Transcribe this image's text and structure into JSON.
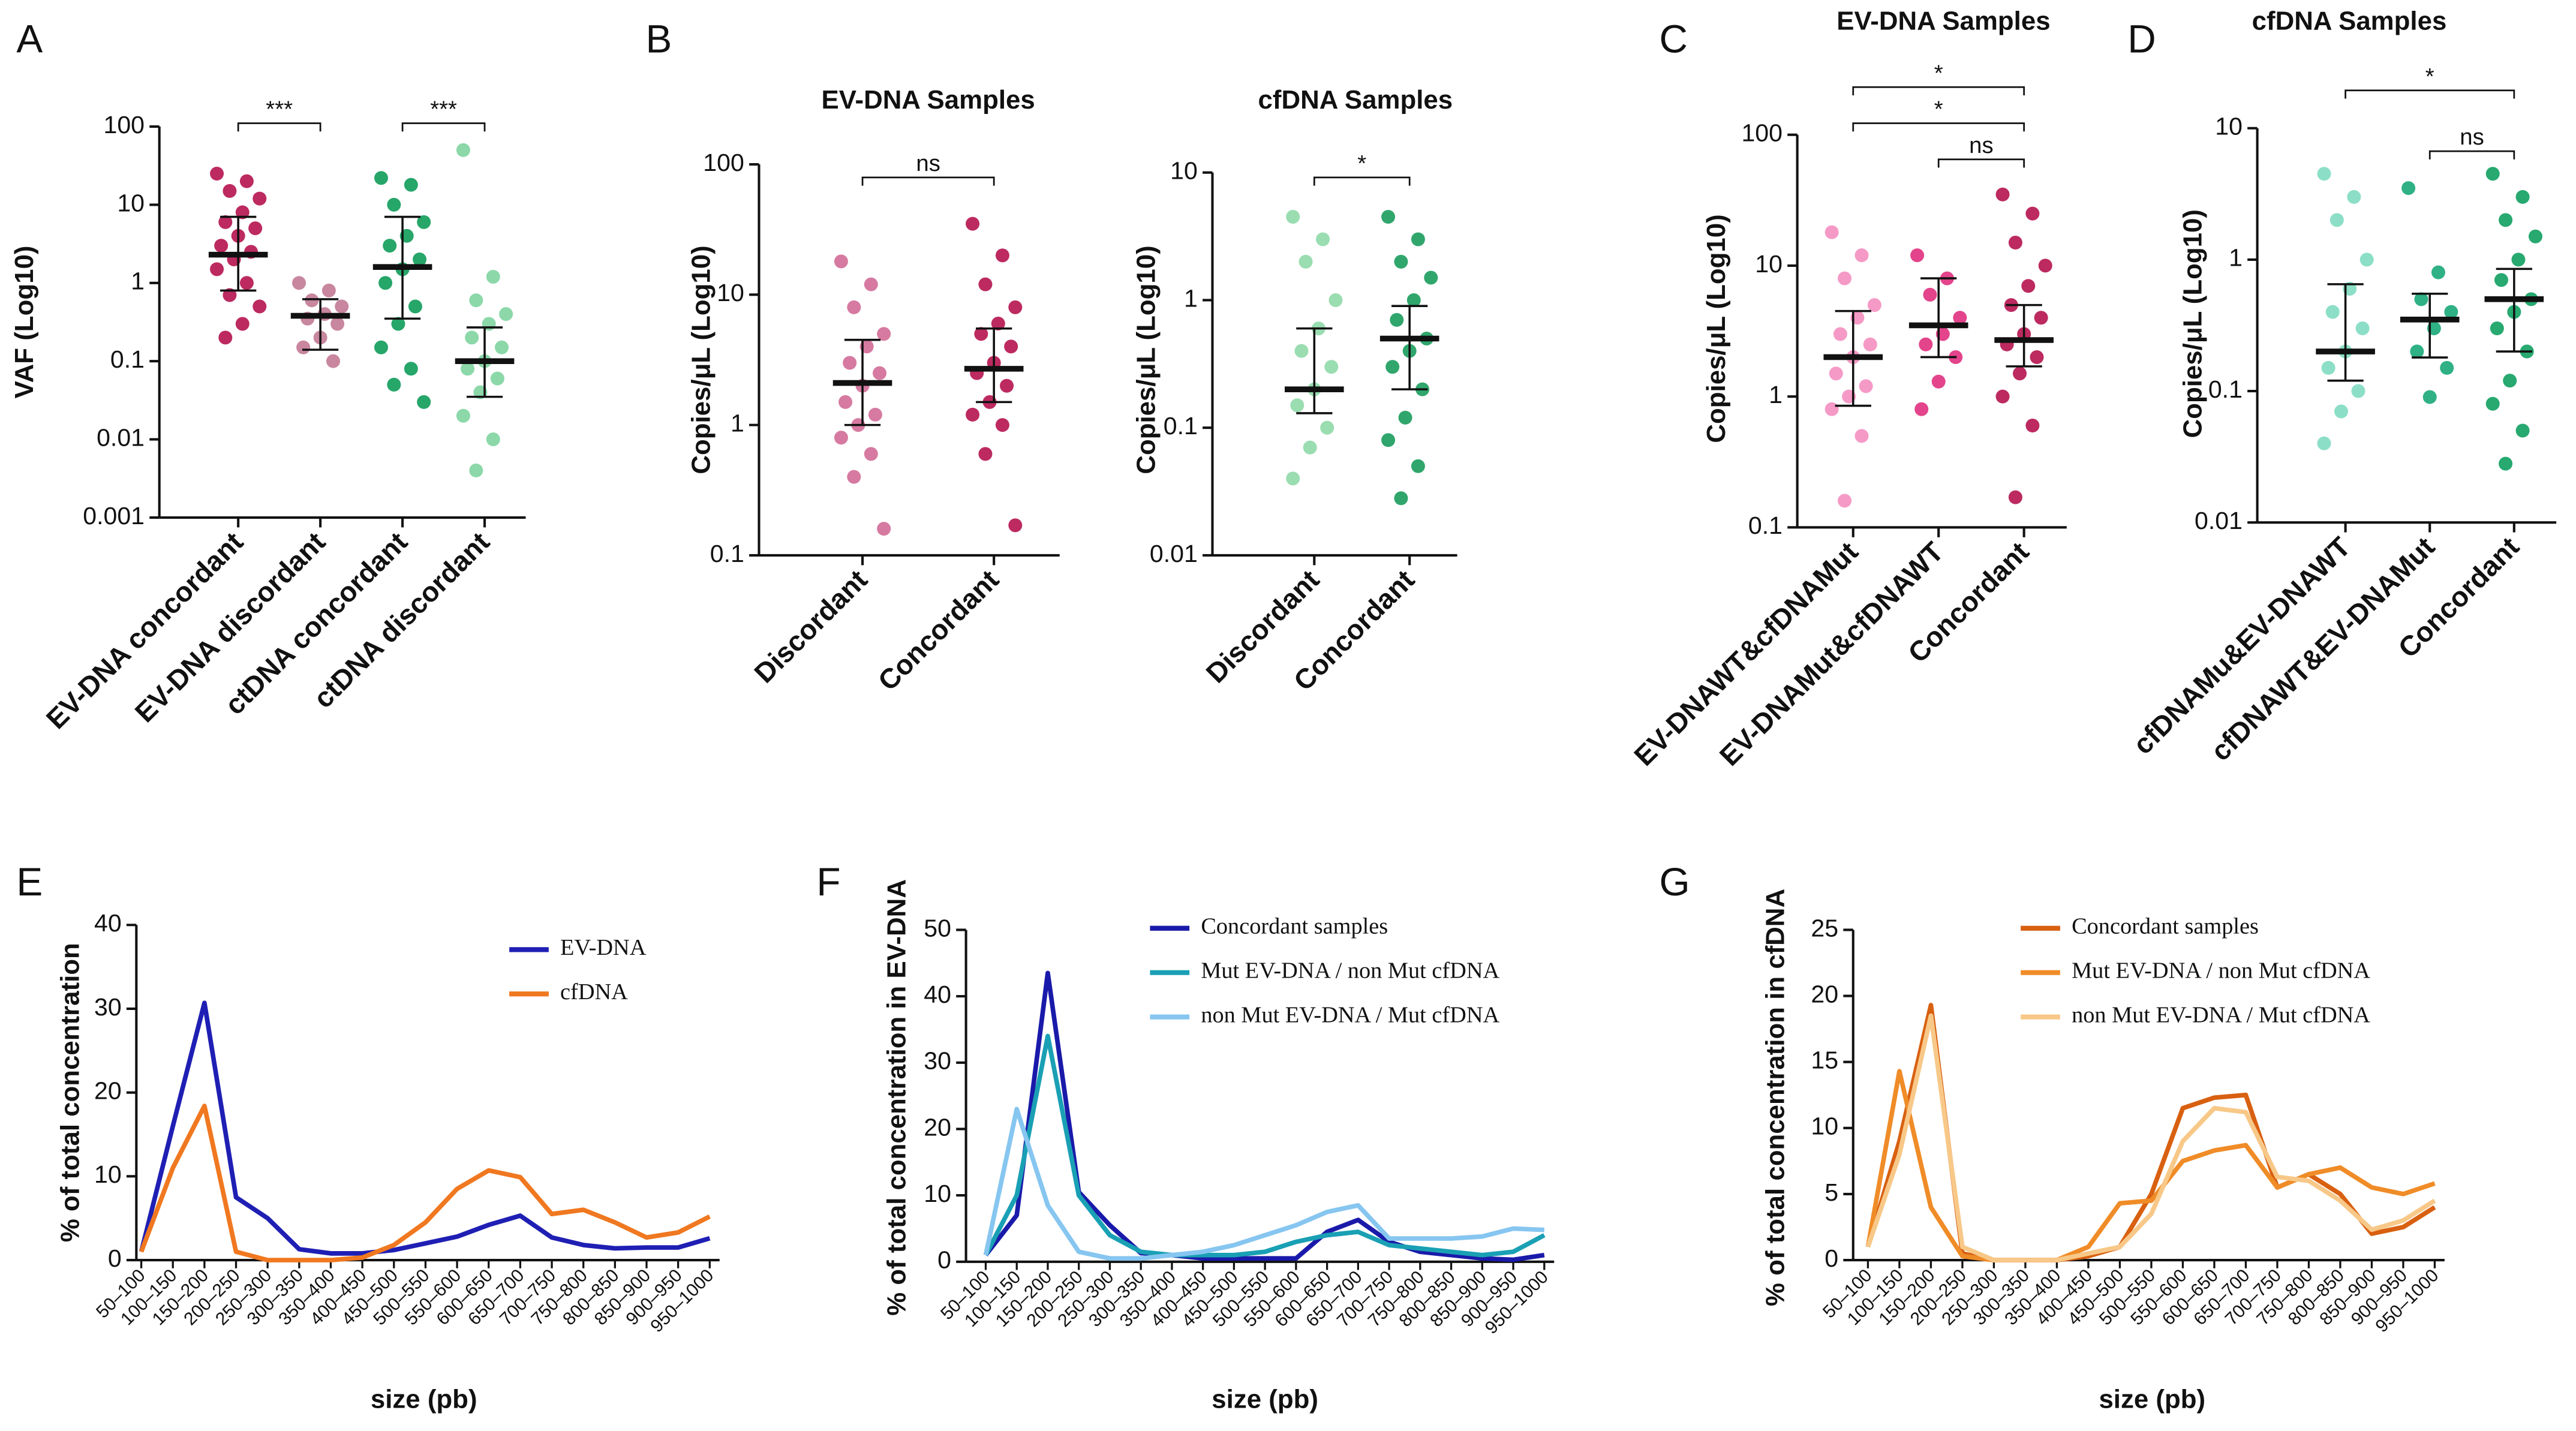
{
  "chart_data": [
    {
      "type": "strip",
      "panel": "A",
      "ylabel": "VAF (Log10)",
      "log": true,
      "ylim": [
        0.001,
        100
      ],
      "yticks": [
        100,
        10,
        1,
        0.1,
        0.01,
        0.001
      ],
      "categories": [
        "EV-DNA concordant",
        "EV-DNA discordant",
        "ctDNA concordant",
        "ctDNA discordant"
      ],
      "groups": [
        {
          "color": "#b5134e",
          "median": 2.3,
          "low": 0.8,
          "high": 7,
          "values": [
            25,
            20,
            15,
            12,
            8,
            6,
            5,
            4,
            3,
            2.5,
            2,
            1.5,
            1,
            0.7,
            0.5,
            0.3,
            0.2
          ]
        },
        {
          "color": "#c27a95",
          "median": 0.38,
          "low": 0.14,
          "high": 0.62,
          "values": [
            1,
            0.8,
            0.6,
            0.5,
            0.4,
            0.35,
            0.3,
            0.2,
            0.15,
            0.1
          ]
        },
        {
          "color": "#0f9c5a",
          "median": 1.6,
          "low": 0.35,
          "high": 7,
          "values": [
            22,
            18,
            10,
            6,
            4,
            3,
            2,
            1.5,
            1,
            0.5,
            0.3,
            0.15,
            0.08,
            0.05,
            0.03
          ]
        },
        {
          "color": "#7fd4a0",
          "median": 0.1,
          "low": 0.035,
          "high": 0.27,
          "values": [
            50,
            1.2,
            0.6,
            0.4,
            0.3,
            0.2,
            0.15,
            0.1,
            0.08,
            0.06,
            0.04,
            0.02,
            0.01,
            0.004
          ]
        }
      ],
      "brackets": [
        {
          "between": [
            "EV-DNA concordant",
            "EV-DNA discordant"
          ],
          "label": "***"
        },
        {
          "between": [
            "ctDNA concordant",
            "ctDNA discordant"
          ],
          "label": "***"
        }
      ]
    },
    {
      "type": "strip",
      "panel": "B",
      "title": "EV-DNA Samples",
      "ylabel": "Copies/μL (Log10)",
      "log": true,
      "ylim": [
        0.1,
        100
      ],
      "yticks": [
        100,
        10,
        1,
        0.1
      ],
      "categories": [
        "Discordant",
        "Concordant"
      ],
      "groups": [
        {
          "color": "#d16b97",
          "median": 2.1,
          "low": 1.0,
          "high": 4.5,
          "values": [
            18,
            12,
            8,
            5,
            4,
            3,
            2.5,
            2,
            1.5,
            1.2,
            1,
            0.8,
            0.6,
            0.4,
            0.16
          ]
        },
        {
          "color": "#b5134e",
          "median": 2.7,
          "low": 1.5,
          "high": 5.5,
          "values": [
            35,
            20,
            12,
            8,
            6,
            5,
            4,
            3,
            2.5,
            2,
            1.5,
            1.2,
            1,
            0.6,
            0.17
          ]
        }
      ],
      "brackets": [
        {
          "between": [
            "Discordant",
            "Concordant"
          ],
          "label": "ns"
        }
      ]
    },
    {
      "type": "strip",
      "title": "cfDNA  Samples",
      "ylabel": "Copies/μL (Log10)",
      "log": true,
      "ylim": [
        0.01,
        10
      ],
      "yticks": [
        10,
        1,
        0.1,
        0.01
      ],
      "categories": [
        "Discordant",
        "Concordant"
      ],
      "groups": [
        {
          "color": "#8fd9a8",
          "median": 0.2,
          "low": 0.13,
          "high": 0.6,
          "values": [
            4.5,
            3,
            2,
            1,
            0.6,
            0.4,
            0.3,
            0.2,
            0.15,
            0.1,
            0.07,
            0.04
          ]
        },
        {
          "color": "#1a9c5c",
          "median": 0.5,
          "low": 0.2,
          "high": 0.9,
          "values": [
            4.5,
            3,
            2,
            1.5,
            1,
            0.7,
            0.5,
            0.4,
            0.3,
            0.2,
            0.12,
            0.08,
            0.05,
            0.028
          ]
        }
      ],
      "brackets": [
        {
          "between": [
            "Discordant",
            "Concordant"
          ],
          "label": "*"
        }
      ]
    },
    {
      "type": "strip",
      "panel": "C",
      "title": "EV-DNA Samples",
      "ylabel": "Copies/μL (Log10)",
      "log": true,
      "ylim": [
        0.1,
        100
      ],
      "yticks": [
        100,
        10,
        1,
        0.1
      ],
      "categories": [
        "EV-DNAWT&cfDNAMut",
        "EV-DNAMut&cfDNAWT",
        "Concordant"
      ],
      "groups": [
        {
          "color": "#f48fc0",
          "median": 2,
          "low": 0.85,
          "high": 4.5,
          "values": [
            18,
            12,
            8,
            5,
            4,
            3,
            2.5,
            2,
            1.5,
            1.2,
            1,
            0.8,
            0.5,
            0.16
          ]
        },
        {
          "color": "#e0307e",
          "median": 3.5,
          "low": 2,
          "high": 8,
          "values": [
            12,
            8,
            6,
            4,
            3,
            2.5,
            2,
            1.3,
            0.8
          ]
        },
        {
          "color": "#b5134e",
          "median": 2.7,
          "low": 1.7,
          "high": 5,
          "values": [
            35,
            25,
            15,
            10,
            7,
            5,
            4,
            3,
            2.5,
            2,
            1.5,
            1,
            0.6,
            0.17
          ]
        }
      ],
      "brackets": [
        {
          "between": [
            "EV-DNAWT&cfDNAMut",
            "Concordant"
          ],
          "label": "*"
        },
        {
          "between": [
            "EV-DNAWT&cfDNAMut",
            "Concordant"
          ],
          "label": "*"
        },
        {
          "between": [
            "EV-DNAMut&cfDNAWT",
            "Concordant"
          ],
          "label": "ns"
        }
      ]
    },
    {
      "type": "strip",
      "panel": "D",
      "title": "cfDNA Samples",
      "ylabel": "Copies/μL (Log10)",
      "log": true,
      "ylim": [
        0.01,
        10
      ],
      "yticks": [
        10,
        1,
        0.1,
        0.01
      ],
      "categories": [
        "cfDNAMu&EV-DNAWT",
        "cfDNAWT&EV-DNAMut",
        "Concordant"
      ],
      "groups": [
        {
          "color": "#7fdcc0",
          "median": 0.2,
          "low": 0.12,
          "high": 0.65,
          "values": [
            4.5,
            3,
            2,
            1,
            0.6,
            0.4,
            0.3,
            0.2,
            0.15,
            0.1,
            0.07,
            0.04
          ]
        },
        {
          "color": "#18a878",
          "median": 0.35,
          "low": 0.18,
          "high": 0.55,
          "values": [
            3.5,
            0.8,
            0.5,
            0.4,
            0.3,
            0.2,
            0.15,
            0.09
          ]
        },
        {
          "color": "#10a060",
          "median": 0.5,
          "low": 0.2,
          "high": 0.85,
          "values": [
            4.5,
            3,
            2,
            1.5,
            1,
            0.7,
            0.5,
            0.4,
            0.3,
            0.2,
            0.12,
            0.08,
            0.05,
            0.028
          ]
        }
      ],
      "brackets": [
        {
          "between": [
            "cfDNAMu&EV-DNAWT",
            "Concordant"
          ],
          "label": "*"
        },
        {
          "between": [
            "cfDNAWT&EV-DNAMut",
            "Concordant"
          ],
          "label": "ns"
        }
      ]
    },
    {
      "type": "line",
      "panel": "E",
      "ylabel": "% of total concentration",
      "xlabel": "size (pb)",
      "ylim": [
        0,
        40
      ],
      "yticks": [
        0,
        10,
        20,
        30,
        40
      ],
      "categories": [
        "50–100",
        "100–150",
        "150–200",
        "200–250",
        "250–300",
        "300–350",
        "350–400",
        "400–450",
        "450–500",
        "500–550",
        "550–600",
        "600–650",
        "650–700",
        "700–750",
        "750–800",
        "800–850",
        "850–900",
        "900–950",
        "950–1000"
      ],
      "series": [
        {
          "name": "EV-DNA",
          "color": "#1f1fb4",
          "values": [
            1,
            16,
            30.7,
            7.5,
            5,
            1.3,
            0.8,
            0.8,
            1.2,
            2,
            2.8,
            4.2,
            5.3,
            2.7,
            1.8,
            1.4,
            1.5,
            1.5,
            2.6
          ]
        },
        {
          "name": "cfDNA",
          "color": "#f07820",
          "values": [
            1,
            11,
            18.4,
            1,
            0,
            0,
            0,
            0.3,
            1.8,
            4.5,
            8.5,
            10.7,
            9.9,
            5.5,
            6,
            4.5,
            2.7,
            3.3,
            5.2
          ]
        }
      ]
    },
    {
      "type": "line",
      "panel": "F",
      "ylabel": "% of total concentration in EV-DNA",
      "xlabel": "size (pb)",
      "ylim": [
        0,
        50
      ],
      "yticks": [
        0,
        10,
        20,
        30,
        40,
        50
      ],
      "categories": [
        "50–100",
        "100–150",
        "150–200",
        "200–250",
        "250–300",
        "300–350",
        "350–400",
        "400–450",
        "450–500",
        "500–550",
        "550–600",
        "600–650",
        "650–700",
        "700–750",
        "750–800",
        "800–850",
        "850–900",
        "900–950",
        "950–1000"
      ],
      "series": [
        {
          "name": "Concordant samples",
          "color": "#1a1aaa",
          "values": [
            1,
            7,
            43.5,
            10.5,
            5.5,
            1.3,
            1,
            0.5,
            0.5,
            0.5,
            0.5,
            4.5,
            6.3,
            3,
            1.5,
            1,
            0.5,
            0.3,
            1
          ]
        },
        {
          "name": "Mut EV-DNA / non Mut cfDNA",
          "color": "#1aa0b4",
          "values": [
            1,
            10,
            34,
            10,
            4,
            1.5,
            1,
            1,
            1,
            1.5,
            3,
            4,
            4.5,
            2.5,
            2,
            1.5,
            1,
            1.5,
            4
          ]
        },
        {
          "name": "non Mut EV-DNA / Mut cfDNA",
          "color": "#86c6f0",
          "values": [
            1,
            23,
            8.5,
            1.5,
            0.5,
            0.5,
            1,
            1.5,
            2.5,
            4,
            5.5,
            7.5,
            8.5,
            3.5,
            3.5,
            3.5,
            3.8,
            5,
            4.8
          ]
        }
      ]
    },
    {
      "type": "line",
      "panel": "G",
      "ylabel": "% of total concentration in cfDNA",
      "xlabel": "size (pb)",
      "ylim": [
        0,
        25
      ],
      "yticks": [
        0,
        5,
        10,
        15,
        20,
        25
      ],
      "categories": [
        "50–100",
        "100–150",
        "150–200",
        "200–250",
        "250–300",
        "300–350",
        "350–400",
        "400–450",
        "450–500",
        "500–550",
        "550–600",
        "600–650",
        "650–700",
        "700–750",
        "750–800",
        "800–850",
        "850–900",
        "900–950",
        "950–1000"
      ],
      "series": [
        {
          "name": "Concordant samples",
          "color": "#d86010",
          "values": [
            1,
            9,
            19.3,
            0.5,
            0,
            0,
            0,
            0.3,
            1,
            5,
            11.5,
            12.3,
            12.5,
            5.5,
            6.5,
            5,
            2,
            2.5,
            4
          ]
        },
        {
          "name": "Mut EV-DNA / non Mut cfDNA",
          "color": "#f08c28",
          "values": [
            1,
            14.3,
            4,
            0.3,
            0,
            0,
            0,
            1,
            4.3,
            4.5,
            7.5,
            8.3,
            8.7,
            5.5,
            6.5,
            7,
            5.5,
            5,
            5.8
          ]
        },
        {
          "name": "non Mut EV-DNA / Mut cfDNA",
          "color": "#f8c888",
          "values": [
            1,
            8,
            18.5,
            1,
            0,
            0,
            0,
            0.5,
            1,
            3.5,
            9,
            11.5,
            11.2,
            6.3,
            6,
            4.5,
            2.3,
            3,
            4.5
          ]
        }
      ]
    }
  ]
}
